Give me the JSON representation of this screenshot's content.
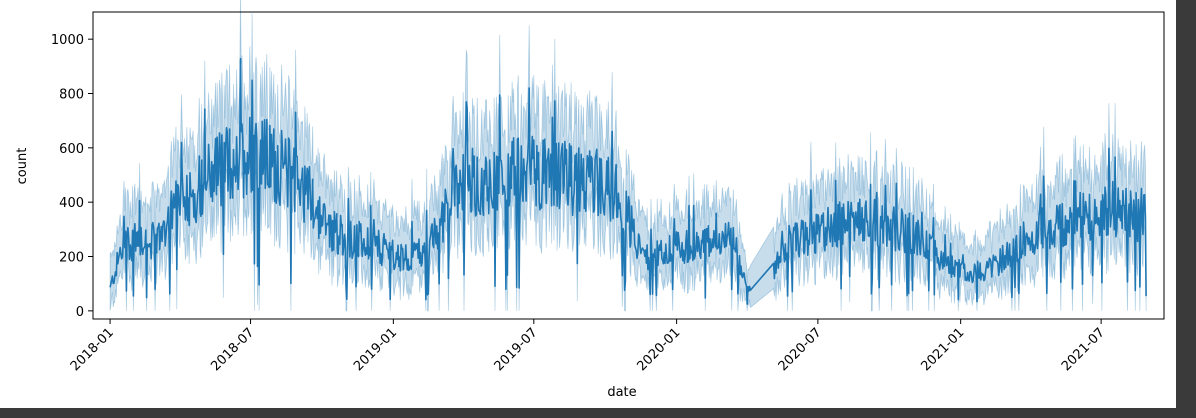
{
  "chart_data": {
    "type": "line",
    "title": "",
    "xlabel": "date",
    "ylabel": "count",
    "x_axis": "date",
    "xlim": [
      "2017-12-10",
      "2021-09-20"
    ],
    "ylim": [
      -30,
      1100
    ],
    "x_ticks": [
      {
        "date": "2018-01-01",
        "label": "2018-01"
      },
      {
        "date": "2018-07-01",
        "label": "2018-07"
      },
      {
        "date": "2019-01-01",
        "label": "2019-01"
      },
      {
        "date": "2019-07-01",
        "label": "2019-07"
      },
      {
        "date": "2020-01-01",
        "label": "2020-01"
      },
      {
        "date": "2020-07-01",
        "label": "2020-07"
      },
      {
        "date": "2021-01-01",
        "label": "2021-01"
      },
      {
        "date": "2021-07-01",
        "label": "2021-07"
      }
    ],
    "y_ticks": [
      0,
      200,
      400,
      600,
      800,
      1000
    ],
    "grid": false,
    "legend": "none",
    "colors": {
      "line": "#1f77b4",
      "band": "#1f77b4"
    },
    "series": [
      {
        "x": [
          "2018-01-01",
          "2018-01-15",
          "2018-02-01",
          "2018-02-15",
          "2018-03-01",
          "2018-03-15",
          "2018-04-01",
          "2018-04-15",
          "2018-05-01",
          "2018-05-15",
          "2018-06-01",
          "2018-06-15",
          "2018-07-01",
          "2018-07-15",
          "2018-08-01",
          "2018-08-15",
          "2018-09-01",
          "2018-09-15",
          "2018-10-01",
          "2018-10-15",
          "2018-11-01",
          "2018-11-15",
          "2018-12-01",
          "2018-12-15",
          "2019-01-01",
          "2019-01-15",
          "2019-02-01",
          "2019-02-15",
          "2019-03-01",
          "2019-03-15",
          "2019-04-01",
          "2019-04-15",
          "2019-05-01",
          "2019-05-15",
          "2019-06-01",
          "2019-06-15",
          "2019-07-01",
          "2019-07-15",
          "2019-08-01",
          "2019-08-15",
          "2019-09-01",
          "2019-09-15",
          "2019-10-01",
          "2019-10-15",
          "2019-11-01",
          "2019-11-15",
          "2019-12-01",
          "2019-12-15",
          "2020-01-01",
          "2020-01-15",
          "2020-02-01",
          "2020-02-15",
          "2020-03-01",
          "2020-03-15",
          "2020-04-01",
          "2020-05-05",
          "2020-05-15",
          "2020-06-01",
          "2020-06-15",
          "2020-07-01",
          "2020-07-15",
          "2020-08-01",
          "2020-08-15",
          "2020-09-01",
          "2020-09-15",
          "2020-10-01",
          "2020-10-15",
          "2020-11-01",
          "2020-11-15",
          "2020-12-01",
          "2020-12-15",
          "2021-01-01",
          "2021-01-15",
          "2021-02-01",
          "2021-02-15",
          "2021-03-01",
          "2021-03-15",
          "2021-04-01",
          "2021-04-15",
          "2021-05-01",
          "2021-05-15",
          "2021-06-01",
          "2021-06-15",
          "2021-07-01",
          "2021-07-15",
          "2021-08-01",
          "2021-08-15",
          "2021-08-28"
        ],
        "y": [
          80,
          220,
          260,
          270,
          250,
          330,
          450,
          420,
          480,
          520,
          540,
          560,
          590,
          570,
          540,
          520,
          470,
          430,
          330,
          300,
          270,
          260,
          250,
          230,
          210,
          200,
          210,
          230,
          300,
          420,
          480,
          470,
          490,
          480,
          500,
          510,
          520,
          500,
          490,
          490,
          470,
          480,
          460,
          430,
          330,
          220,
          200,
          210,
          230,
          240,
          250,
          250,
          260,
          250,
          70,
          140,
          230,
          260,
          270,
          280,
          310,
          320,
          330,
          330,
          320,
          310,
          300,
          280,
          250,
          210,
          180,
          150,
          140,
          150,
          170,
          200,
          250,
          280,
          300,
          310,
          320,
          340,
          350,
          370,
          380,
          360,
          350,
          360
        ]
      }
    ]
  }
}
